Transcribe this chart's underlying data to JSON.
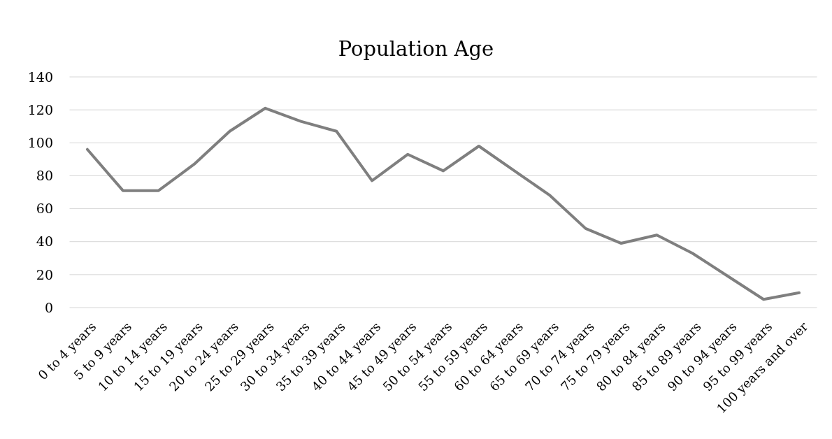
{
  "chart_data": {
    "type": "line",
    "title": "Population Age",
    "categories": [
      "0 to 4 years",
      "5 to 9 years",
      "10 to 14 years",
      "15 to 19 years",
      "20 to 24 years",
      "25 to 29 years",
      "30 to 34 years",
      "35 to 39 years",
      "40 to 44 years",
      "45 to 49 years",
      "50 to 54 years",
      "55 to 59 years",
      "60 to 64 years",
      "65 to 69 years",
      "70 to 74 years",
      "75 to 79 years",
      "80 to 84 years",
      "85 to 89 years",
      "90 to 94 years",
      "95 to 99 years",
      "100 years and over"
    ],
    "series": [
      {
        "color": "#7f7f7f",
        "values": [
          96,
          71,
          71,
          87,
          107,
          121,
          113,
          107,
          77,
          93,
          83,
          98,
          83,
          68,
          48,
          39,
          44,
          33,
          19,
          5,
          9
        ]
      }
    ],
    "ylim": [
      0,
      140
    ],
    "yticks": [
      0,
      20,
      40,
      60,
      80,
      100,
      120,
      140
    ],
    "grid": "y"
  }
}
